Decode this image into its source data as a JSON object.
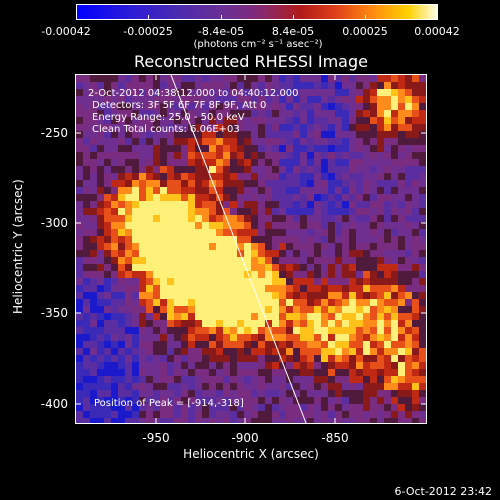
{
  "colorbar": {
    "tick_labels": [
      "-0.00042",
      "-0.00025",
      "-8.4e-05",
      "8.4e-05",
      "0.00025",
      "0.00042"
    ],
    "units_label": "(photons cm⁻² s⁻¹ asec⁻²)"
  },
  "plot": {
    "title": "Reconstructed RHESSI Image",
    "time_range": "2-Oct-2012 04:38:12.000 to 04:40:12.000",
    "detectors": "Detectors: 3F 5F 6F 7F 8F 9F, Att 0",
    "energy_range": "Energy Range: 25.0 - 50.0 keV",
    "clean_counts": "Clean    Total counts: 6.06E+03",
    "peak_position": "Position of Peak = [-914,-318]",
    "xlabel": "Heliocentric X (arcsec)",
    "ylabel": "Heliocentric Y (arcsec)",
    "x_ticks": [
      "-950",
      "-900",
      "-850"
    ],
    "y_ticks": [
      "-250",
      "-300",
      "-350",
      "-400"
    ]
  },
  "footer": {
    "timestamp": "6-Oct-2012 23:42"
  }
}
